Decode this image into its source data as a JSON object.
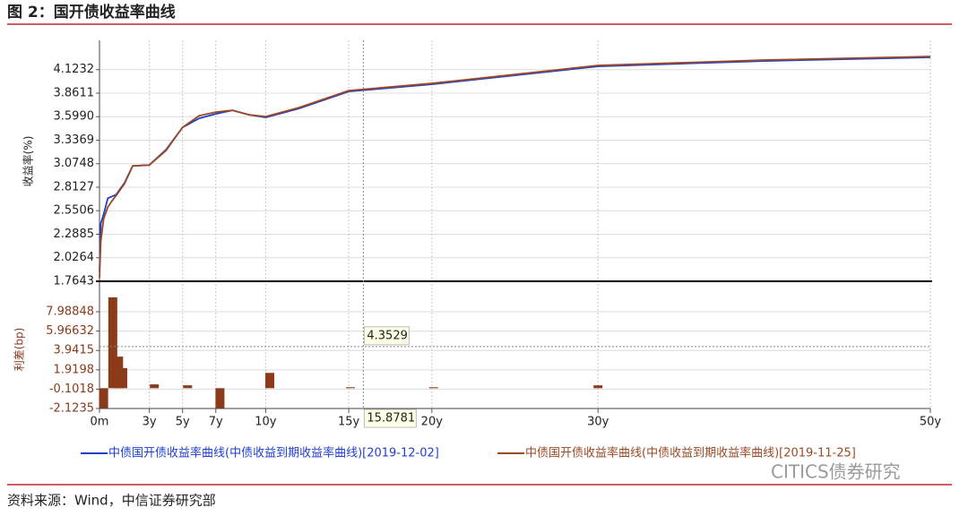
{
  "chart_data": [
    {
      "type": "line",
      "title": "图 2：国开债收益率曲线",
      "ylabel": "收益率(%)",
      "x": [
        0,
        0.08,
        0.25,
        0.5,
        0.75,
        1,
        1.5,
        2,
        3,
        4,
        5,
        6,
        7,
        8,
        9,
        10,
        12,
        15,
        20,
        30,
        40,
        50
      ],
      "series": [
        {
          "name": "中债国开债收益率曲线(中债收益到期收益率曲线)[2019-12-02]",
          "color": "#1f3fcf",
          "values": [
            1.87,
            2.41,
            2.51,
            2.69,
            2.71,
            2.73,
            2.86,
            3.05,
            3.06,
            3.23,
            3.48,
            3.58,
            3.63,
            3.67,
            3.62,
            3.59,
            3.69,
            3.88,
            3.96,
            4.16,
            4.22,
            4.26
          ]
        },
        {
          "name": "中债国开债收益率曲线(中债收益到期收益率曲线)[2019-11-25]",
          "color": "#9a4a24",
          "values": [
            1.8,
            2.21,
            2.46,
            2.59,
            2.66,
            2.72,
            2.85,
            3.05,
            3.06,
            3.22,
            3.48,
            3.61,
            3.65,
            3.67,
            3.62,
            3.6,
            3.7,
            3.89,
            3.97,
            4.17,
            4.23,
            4.27
          ]
        }
      ],
      "xlim": [
        0,
        50
      ],
      "ylim": [
        1.7643,
        4.45
      ],
      "yticks": [
        1.7643,
        2.0264,
        2.2885,
        2.5506,
        2.8127,
        3.0748,
        3.3369,
        {
          "value": 3.599,
          "label": "3.5990"
        },
        3.8611,
        4.1232
      ],
      "grid": true,
      "legend": "bottom"
    },
    {
      "type": "bar",
      "ylabel": "利差(bp)",
      "x": [
        0.25,
        0.8,
        1.15,
        1.4,
        3.3,
        5.3,
        7.25,
        10.25,
        15.1,
        20.1,
        30
      ],
      "values": [
        -2.1,
        9.5,
        3.3,
        2.1,
        0.4,
        0.3,
        -2.1,
        1.6,
        0.1,
        0.1,
        0.3
      ],
      "color": "#8b3a1a",
      "xlim": [
        0,
        50
      ],
      "xticks": [
        {
          "value": 0,
          "label": "0m"
        },
        {
          "value": 3,
          "label": "3y"
        },
        {
          "value": 5,
          "label": "5y"
        },
        {
          "value": 7,
          "label": "7y"
        },
        {
          "value": 10,
          "label": "10y"
        },
        {
          "value": 15,
          "label": "15y"
        },
        {
          "value": 20,
          "label": "20y"
        },
        {
          "value": 30,
          "label": "30y"
        },
        {
          "value": 50,
          "label": "50y"
        }
      ],
      "ylim": [
        -2.1235,
        10.8
      ],
      "yticks": [
        -2.1235,
        -0.1018,
        1.9198,
        3.9415,
        5.96632,
        7.98848
      ],
      "grid": true,
      "crosshair": {
        "x": 15.8781,
        "y": 4.3529
      }
    }
  ],
  "footer": {
    "source": "资料来源：Wind，中信证券研究部",
    "watermark": "CITICS债券研究"
  }
}
